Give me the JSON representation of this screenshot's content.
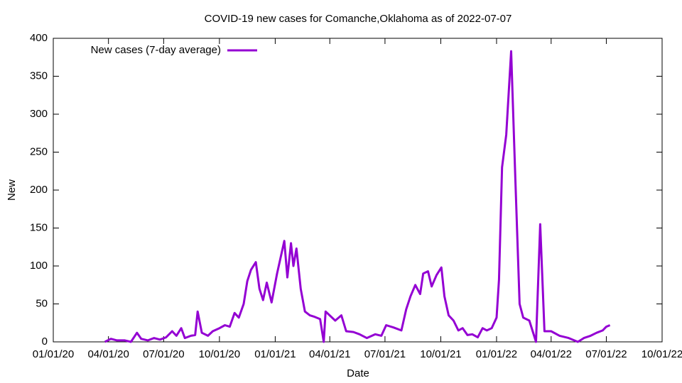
{
  "chart_data": {
    "type": "line",
    "title": "COVID-19 new cases for Comanche,Oklahoma as of 2022-07-07",
    "x_label": "Date",
    "y_label": "New",
    "xlim": [
      "2020-01-01",
      "2022-10-01"
    ],
    "xticks": [
      {
        "value": "2020-01-01",
        "label": "01/01/20"
      },
      {
        "value": "2020-04-01",
        "label": "04/01/20"
      },
      {
        "value": "2020-07-01",
        "label": "07/01/20"
      },
      {
        "value": "2020-10-01",
        "label": "10/01/20"
      },
      {
        "value": "2021-01-01",
        "label": "01/01/21"
      },
      {
        "value": "2021-04-01",
        "label": "04/01/21"
      },
      {
        "value": "2021-07-01",
        "label": "07/01/21"
      },
      {
        "value": "2021-10-01",
        "label": "10/01/21"
      },
      {
        "value": "2022-01-01",
        "label": "01/01/22"
      },
      {
        "value": "2022-04-01",
        "label": "04/01/22"
      },
      {
        "value": "2022-07-01",
        "label": "07/01/22"
      },
      {
        "value": "2022-10-01",
        "label": "10/01/22"
      }
    ],
    "ylim": [
      0,
      400
    ],
    "yticks": [
      0,
      50,
      100,
      150,
      200,
      250,
      300,
      350,
      400
    ],
    "legend": "top-left",
    "x": [
      "2020-03-26",
      "2020-04-05",
      "2020-04-15",
      "2020-04-28",
      "2020-05-08",
      "2020-05-18",
      "2020-05-25",
      "2020-06-05",
      "2020-06-15",
      "2020-06-25",
      "2020-07-05",
      "2020-07-15",
      "2020-07-22",
      "2020-07-30",
      "2020-08-05",
      "2020-08-15",
      "2020-08-22",
      "2020-08-26",
      "2020-09-02",
      "2020-09-12",
      "2020-09-20",
      "2020-10-01",
      "2020-10-10",
      "2020-10-18",
      "2020-10-26",
      "2020-11-02",
      "2020-11-10",
      "2020-11-16",
      "2020-11-22",
      "2020-11-30",
      "2020-12-06",
      "2020-12-12",
      "2020-12-18",
      "2020-12-26",
      "2021-01-04",
      "2021-01-16",
      "2021-01-21",
      "2021-01-27",
      "2021-01-31",
      "2021-02-05",
      "2021-02-12",
      "2021-02-19",
      "2021-02-27",
      "2021-03-07",
      "2021-03-16",
      "2021-03-22",
      "2021-03-25",
      "2021-04-02",
      "2021-04-10",
      "2021-04-20",
      "2021-04-28",
      "2021-05-10",
      "2021-05-20",
      "2021-06-01",
      "2021-06-15",
      "2021-06-25",
      "2021-07-03",
      "2021-07-15",
      "2021-07-28",
      "2021-08-05",
      "2021-08-12",
      "2021-08-20",
      "2021-08-28",
      "2021-09-02",
      "2021-09-10",
      "2021-09-16",
      "2021-09-24",
      "2021-10-02",
      "2021-10-07",
      "2021-10-14",
      "2021-10-22",
      "2021-10-30",
      "2021-11-06",
      "2021-11-14",
      "2021-11-22",
      "2021-12-01",
      "2021-12-09",
      "2021-12-16",
      "2021-12-24",
      "2022-01-01",
      "2022-01-05",
      "2022-01-10",
      "2022-01-17",
      "2022-01-25",
      "2022-02-01",
      "2022-02-08",
      "2022-02-14",
      "2022-02-24",
      "2022-03-07",
      "2022-03-14",
      "2022-03-21",
      "2022-04-01",
      "2022-04-15",
      "2022-04-30",
      "2022-05-15",
      "2022-05-25",
      "2022-06-05",
      "2022-06-15",
      "2022-06-25",
      "2022-07-01",
      "2022-07-07"
    ],
    "series": [
      {
        "name": "New cases (7-day average)",
        "color": "#9400d3",
        "values": [
          0,
          4,
          2,
          2,
          0,
          12,
          4,
          2,
          5,
          3,
          6,
          14,
          8,
          18,
          5,
          8,
          9,
          40,
          12,
          8,
          14,
          18,
          22,
          20,
          38,
          32,
          50,
          80,
          95,
          105,
          70,
          55,
          78,
          52,
          90,
          133,
          85,
          130,
          100,
          123,
          70,
          40,
          35,
          33,
          30,
          0,
          40,
          34,
          28,
          35,
          14,
          13,
          10,
          5,
          10,
          8,
          22,
          19,
          15,
          43,
          60,
          75,
          63,
          90,
          93,
          73,
          88,
          98,
          60,
          35,
          28,
          15,
          18,
          9,
          10,
          6,
          18,
          15,
          18,
          32,
          82,
          230,
          273,
          383,
          215,
          50,
          32,
          28,
          0,
          155,
          14,
          14,
          8,
          5,
          0,
          5,
          8,
          12,
          15,
          20,
          22
        ]
      }
    ]
  }
}
